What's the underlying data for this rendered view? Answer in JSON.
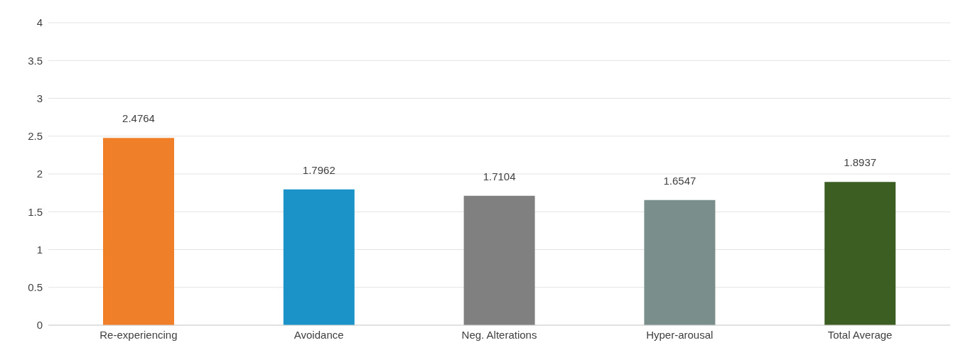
{
  "chart_data": {
    "type": "bar",
    "categories": [
      "Re-experiencing",
      "Avoidance",
      "Neg. Alterations",
      "Hyper-arousal",
      "Total Average"
    ],
    "values": [
      2.4764,
      1.7962,
      1.7104,
      1.6547,
      1.8937
    ],
    "colors": [
      "#f07f2a",
      "#1b93c9",
      "#808080",
      "#7a8f8b",
      "#3d5e22"
    ],
    "ylim": [
      0,
      4
    ],
    "yticks": [
      0,
      0.5,
      1,
      1.5,
      2,
      2.5,
      3,
      3.5,
      4
    ],
    "grid": "y",
    "data_labels": true,
    "legend": false
  }
}
